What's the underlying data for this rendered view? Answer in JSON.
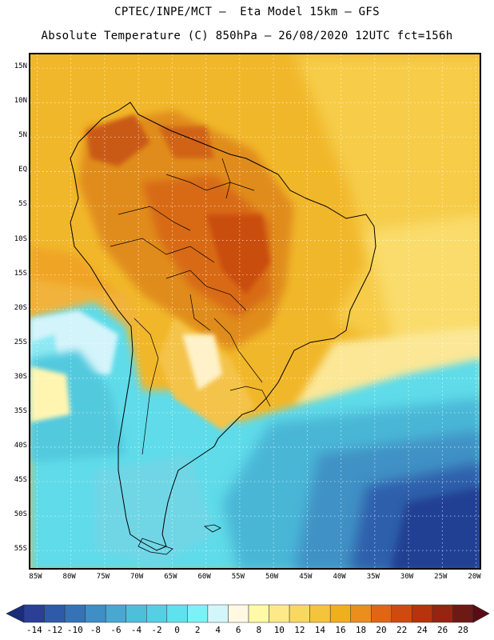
{
  "header": {
    "line1": "CPTEC/INPE/MCT –  Eta Model 15km – GFS",
    "line2": "Absolute Temperature (C) 850hPa – 26/08/2020 12UTC fct=156h"
  },
  "map": {
    "lon_range": [
      -86,
      -19
    ],
    "lat_range": [
      -58,
      17
    ],
    "lat_labels": [
      "15N",
      "10N",
      "5N",
      "EQ",
      "5S",
      "10S",
      "15S",
      "20S",
      "25S",
      "30S",
      "35S",
      "40S",
      "45S",
      "50S",
      "55S"
    ],
    "lat_values": [
      15,
      10,
      5,
      0,
      -5,
      -10,
      -15,
      -20,
      -25,
      -30,
      -35,
      -40,
      -45,
      -50,
      -55
    ],
    "lon_labels": [
      "85W",
      "80W",
      "75W",
      "70W",
      "65W",
      "60W",
      "55W",
      "50W",
      "45W",
      "40W",
      "35W",
      "30W",
      "25W",
      "20W"
    ],
    "lon_values": [
      -85,
      -80,
      -75,
      -70,
      -65,
      -60,
      -55,
      -50,
      -45,
      -40,
      -35,
      -30,
      -25,
      -20
    ]
  },
  "colorbar": {
    "labels": [
      "-14",
      "-12",
      "-10",
      "-8",
      "-6",
      "-4",
      "-2",
      "0",
      "2",
      "4",
      "6",
      "8",
      "10",
      "12",
      "14",
      "16",
      "18",
      "20",
      "22",
      "24",
      "26",
      "28"
    ],
    "colors": [
      "#2a3f95",
      "#2f5aa8",
      "#3673b6",
      "#3f8ec4",
      "#4aa7d0",
      "#4fbfd9",
      "#55d0e3",
      "#5fe1ee",
      "#7cf2f7",
      "#d3f6fb",
      "#fff8e3",
      "#fff9a8",
      "#fde98a",
      "#f9d862",
      "#f4c43e",
      "#f0b01d",
      "#ea8e1c",
      "#e06515",
      "#cf4a10",
      "#b6330d",
      "#952410",
      "#6d1a14"
    ],
    "low_color": "#1a2c7a",
    "high_color": "#5a0c14"
  }
}
